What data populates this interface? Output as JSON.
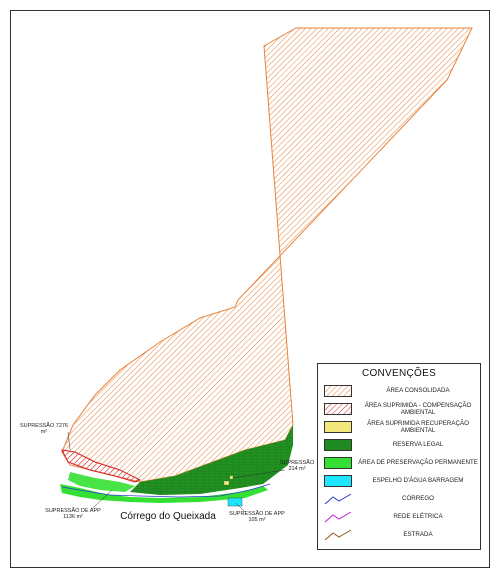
{
  "legend": {
    "title": "CONVENÇÕES",
    "items": [
      {
        "label": "ÁREA CONSOLIDADA",
        "kind": "hatch-orange",
        "color": "#e8823a"
      },
      {
        "label": "ÁREA SUPRIMIDA - COMPENSAÇÃO AMBIENTAL",
        "kind": "hatch-red",
        "color": "#d62020"
      },
      {
        "label": "ÁREA SUPRIMIDA RECUPERAÇÃO AMBIENTAL",
        "kind": "fill",
        "color": "#f2e77a"
      },
      {
        "label": "RESERVA LEGAL",
        "kind": "fill",
        "color": "#1f8a1f"
      },
      {
        "label": "ÁREA DE PRESERVAÇÃO PERMANENTE",
        "kind": "fill",
        "color": "#33e033"
      },
      {
        "label": "ESPELHO D'ÁGUA BARRAGEM",
        "kind": "fill",
        "color": "#1ee6ff"
      },
      {
        "label": "CÓRREGO",
        "kind": "line",
        "color": "#2a3ad6"
      },
      {
        "label": "REDE ELÉTRICA",
        "kind": "line",
        "color": "#c21dd6"
      },
      {
        "label": "ESTRADA",
        "kind": "line",
        "color": "#8a5a1e"
      }
    ]
  },
  "map_labels": {
    "supressao_left": "SUPRESSÃO 7276 m²",
    "supressao_right": "SUPRESSÃO 214 m²",
    "supressao_app_left": "SUPRESSÃO DE APP 1136 m²",
    "supressao_app_right": "SUPRESSÃO DE APP 105 m²",
    "creek_name": "Córrego do Queixada"
  },
  "colors": {
    "consolidated_stroke": "#e8823a",
    "reserve": "#1f8a1f",
    "app": "#33e033",
    "water": "#1ee6ff",
    "compensation": "#d62020"
  }
}
